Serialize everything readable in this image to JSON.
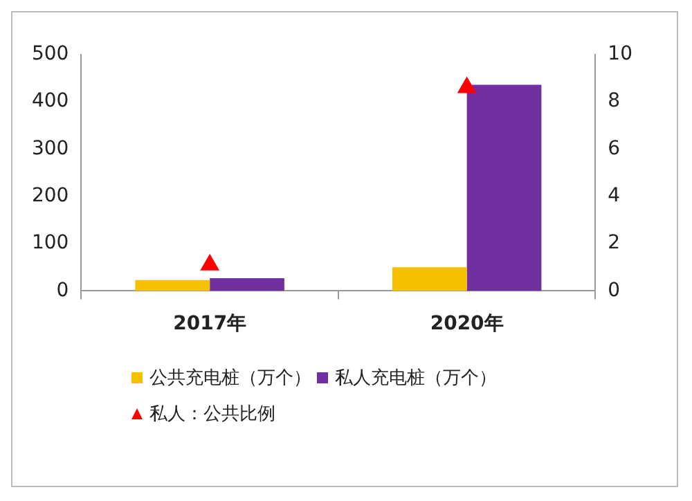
{
  "chart_data": {
    "type": "bar",
    "categories": [
      "2017年",
      "2020年"
    ],
    "series": [
      {
        "name": "公共充电桩（万个）",
        "color": "#f5c000",
        "values": [
          23,
          50
        ]
      },
      {
        "name": "私人充电桩（万个）",
        "color": "#7030a0",
        "values": [
          27,
          436
        ]
      },
      {
        "name": "私人：公共比例",
        "type": "scatter",
        "axis": "y2",
        "marker": "triangle",
        "color": "#ff0000",
        "values": [
          1.1,
          8.6
        ]
      }
    ],
    "ylim": [
      0,
      500
    ],
    "yticks": [
      0,
      100,
      200,
      300,
      400,
      500
    ],
    "y2lim": [
      0,
      10
    ],
    "y2ticks": [
      0,
      2,
      4,
      6,
      8,
      10
    ],
    "grid": false,
    "legend": "bottom"
  }
}
